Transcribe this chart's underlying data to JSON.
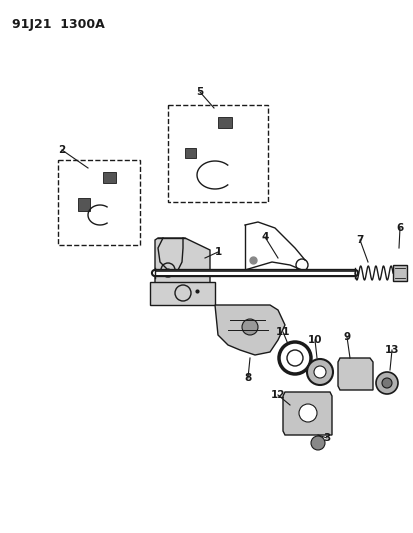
{
  "title": "91J21  1300A",
  "bg_color": "#ffffff",
  "line_color": "#1a1a1a",
  "label_color": "#000000",
  "figsize": [
    4.14,
    5.33
  ],
  "dpi": 100
}
